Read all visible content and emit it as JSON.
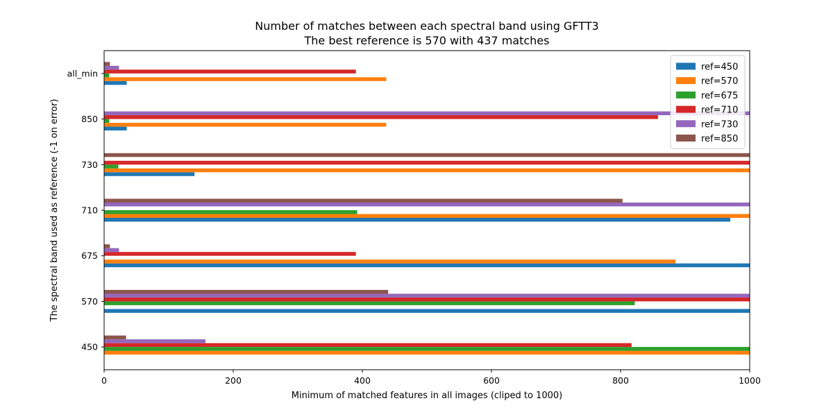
{
  "chart_data": {
    "type": "bar",
    "orientation": "horizontal",
    "title": "Number of matches between each spectral band using GFTT3",
    "subtitle": "The best reference is 570 with 437 matches",
    "xlabel": "Minimum of matched features in all images (cliped to 1000)",
    "ylabel": "The spectral band used as reference (-1 on error)",
    "xlim": [
      0,
      1000
    ],
    "xticks": [
      0,
      200,
      400,
      600,
      800,
      1000
    ],
    "categories": [
      "450",
      "570",
      "675",
      "710",
      "730",
      "850",
      "all_min"
    ],
    "legend_position": "top-right",
    "grid": false,
    "series": [
      {
        "name": "ref=450",
        "color": "#1f77b4",
        "values": [
          0,
          1000,
          1000,
          970,
          140,
          35,
          35
        ]
      },
      {
        "name": "ref=570",
        "color": "#ff7f0e",
        "values": [
          1000,
          0,
          885,
          1000,
          1000,
          437,
          437
        ]
      },
      {
        "name": "ref=675",
        "color": "#2ca02c",
        "values": [
          1000,
          822,
          0,
          392,
          22,
          8,
          8
        ]
      },
      {
        "name": "ref=710",
        "color": "#d62728",
        "values": [
          817,
          1000,
          390,
          0,
          1000,
          858,
          390
        ]
      },
      {
        "name": "ref=730",
        "color": "#9467bd",
        "values": [
          157,
          1000,
          23,
          1000,
          0,
          1000,
          23
        ]
      },
      {
        "name": "ref=850",
        "color": "#8c564b",
        "values": [
          34,
          440,
          9,
          803,
          1000,
          0,
          9
        ]
      }
    ]
  }
}
